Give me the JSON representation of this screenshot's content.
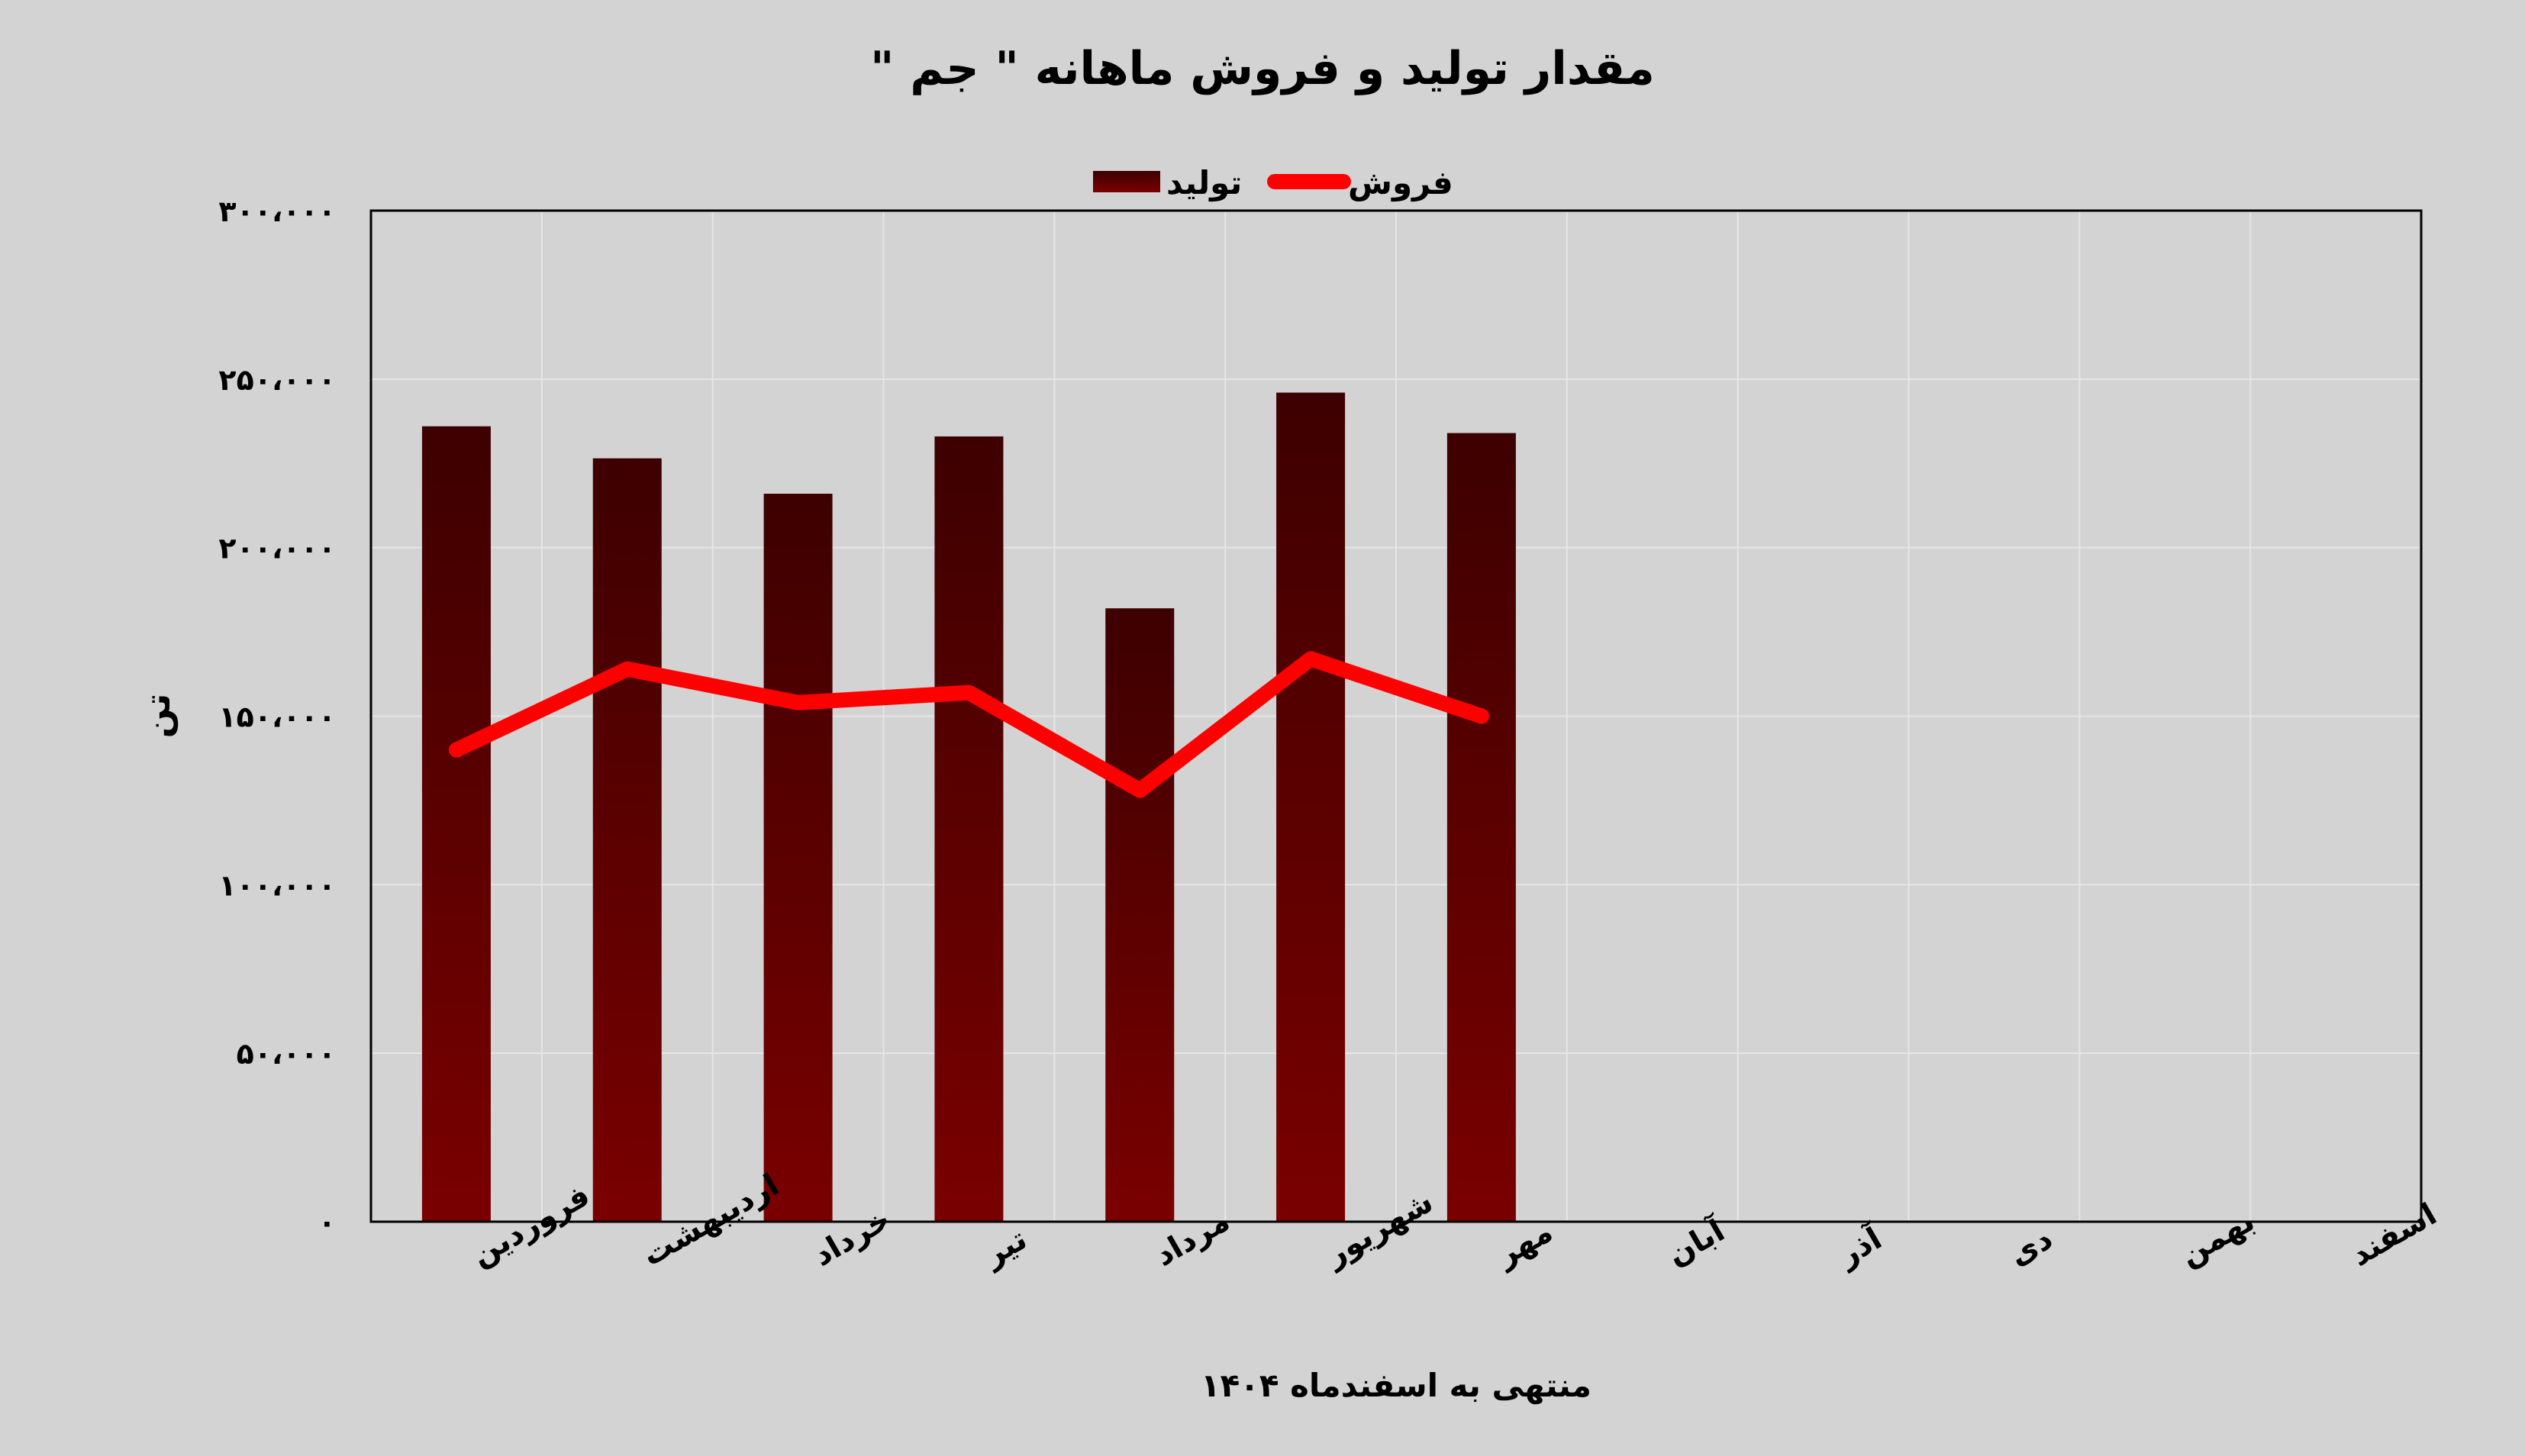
{
  "chart_data": {
    "type": "bar",
    "title": "مقدار تولید و فروش ماهانه \" جم \"",
    "xlabel": "منتهی به اسفندماه ۱۴۰۴",
    "ylabel": "تن",
    "categories": [
      "فروردین",
      "اردیبهشت",
      "خرداد",
      "تیر",
      "مرداد",
      "شهریور",
      "مهر",
      "آبان",
      "آذر",
      "دی",
      "بهمن",
      "اسفند"
    ],
    "series": [
      {
        "name": "تولید",
        "kind": "bar",
        "color": "#6b0000",
        "values": [
          236000,
          226500,
          216000,
          233000,
          182000,
          246000,
          234000,
          null,
          null,
          null,
          null,
          null
        ]
      },
      {
        "name": "فروش",
        "kind": "line",
        "color": "#ff0000",
        "values": [
          140000,
          164000,
          154000,
          157000,
          128000,
          167000,
          150000,
          null,
          null,
          null,
          null,
          null
        ]
      }
    ],
    "ylim": [
      0,
      300000
    ],
    "yticks": [
      0,
      50000,
      100000,
      150000,
      200000,
      250000,
      300000
    ],
    "ytick_labels": [
      "۰",
      "۵۰،۰۰۰",
      "۱۰۰،۰۰۰",
      "۱۵۰،۰۰۰",
      "۲۰۰،۰۰۰",
      "۲۵۰،۰۰۰",
      "۳۰۰،۰۰۰"
    ],
    "grid": true,
    "legend_position": "top-center"
  }
}
